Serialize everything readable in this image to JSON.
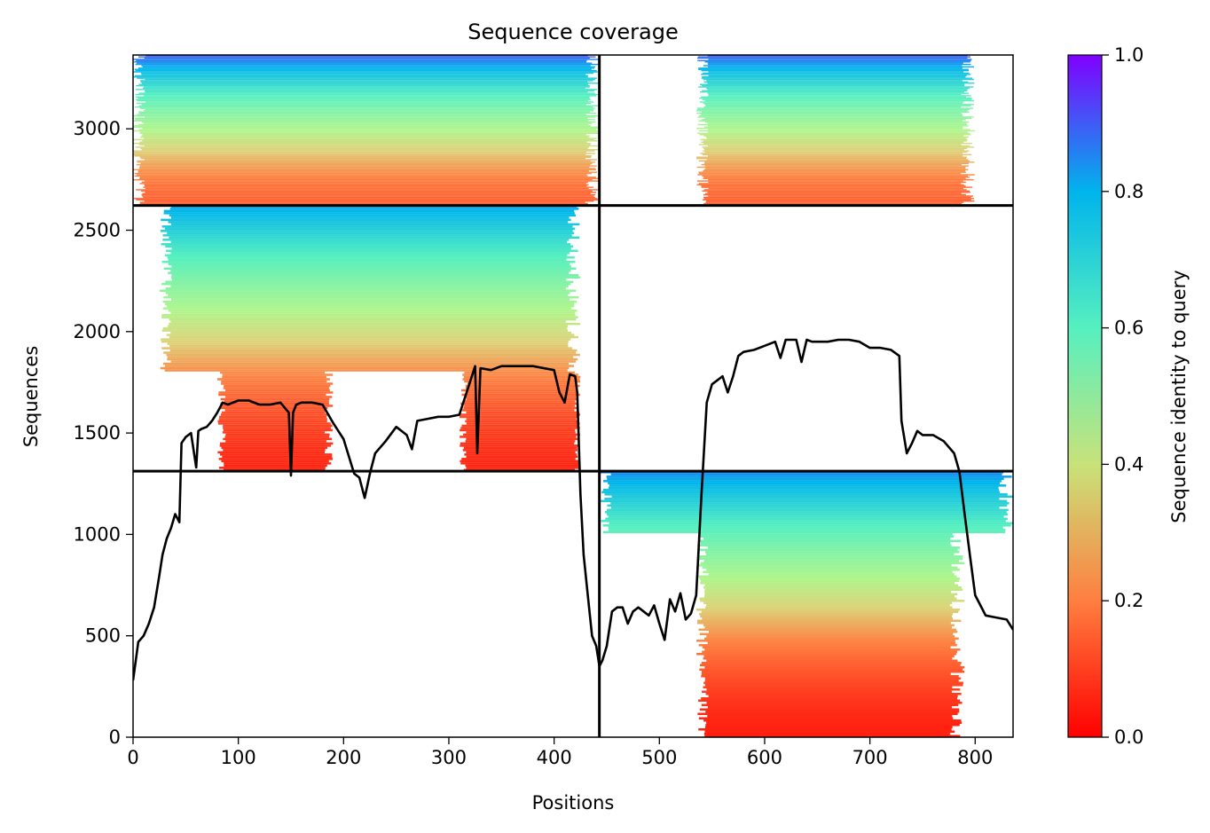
{
  "chart_data": {
    "type": "heatmap",
    "title": "Sequence coverage",
    "xlabel": "Positions",
    "ylabel": "Sequences",
    "xlim": [
      0,
      836
    ],
    "ylim": [
      0,
      3364
    ],
    "xticks": [
      0,
      100,
      200,
      300,
      400,
      500,
      600,
      700,
      800
    ],
    "yticks": [
      0,
      500,
      1000,
      1500,
      2000,
      2500,
      3000
    ],
    "grid": false,
    "legend": "none",
    "colorbar": {
      "label": "Sequence identity to query",
      "range": [
        0.0,
        1.0
      ],
      "ticks": [
        0.0,
        0.2,
        0.4,
        0.6,
        0.8,
        1.0
      ],
      "colormap": "rainbow_r",
      "stops": [
        "#ff0000",
        "#ff7f40",
        "#fff17a",
        "#80ffb4",
        "#00b4ec",
        "#8000ff"
      ]
    },
    "divider_lines": {
      "x": [
        443
      ],
      "y": [
        1312,
        2622
      ],
      "color": "#000000"
    },
    "blocks": [
      {
        "name": "lower-left",
        "x": [
          0,
          443
        ],
        "y": [
          0,
          1312
        ],
        "coverage": "empty"
      },
      {
        "name": "lower-right",
        "x": [
          443,
          836
        ],
        "y": [
          0,
          1312
        ],
        "core_x": [
          535,
          790
        ],
        "wide_x": [
          443,
          836
        ],
        "wide_min_seq": 1000,
        "identity_top": 0.85,
        "identity_bottom": 0.05
      },
      {
        "name": "middle-left",
        "x": [
          0,
          443
        ],
        "y": [
          1312,
          2622
        ],
        "core_x": [
          25,
          425
        ],
        "low_x": [
          80,
          430
        ],
        "low_max_seq": 1800,
        "identity_top": 0.82,
        "identity_bottom": 0.06
      },
      {
        "name": "middle-right",
        "x": [
          443,
          836
        ],
        "y": [
          1312,
          2622
        ],
        "coverage": "empty"
      },
      {
        "name": "upper-left",
        "x": [
          0,
          443
        ],
        "y": [
          2622,
          3364
        ],
        "core_x": [
          0,
          443
        ],
        "identity_top": 0.9,
        "identity_bottom": 0.15
      },
      {
        "name": "upper-right",
        "x": [
          443,
          836
        ],
        "y": [
          2622,
          3364
        ],
        "core_x": [
          535,
          800
        ],
        "identity_top": 0.9,
        "identity_bottom": 0.15
      }
    ],
    "series": [
      {
        "type": "line",
        "color": "#000000",
        "x": [
          0,
          5,
          10,
          15,
          20,
          25,
          28,
          32,
          36,
          40,
          44,
          46,
          50,
          55,
          60,
          62,
          65,
          70,
          75,
          80,
          85,
          90,
          100,
          110,
          120,
          130,
          140,
          148,
          150,
          152,
          155,
          160,
          170,
          180,
          190,
          200,
          210,
          215,
          220,
          225,
          230,
          240,
          250,
          260,
          265,
          270,
          280,
          290,
          300,
          310,
          320,
          325,
          327,
          330,
          340,
          350,
          360,
          370,
          380,
          390,
          400,
          405,
          410,
          415,
          420,
          422,
          425,
          428,
          432,
          436,
          440,
          443,
          446,
          450,
          455,
          460,
          465,
          470,
          475,
          480,
          490,
          495,
          500,
          505,
          510,
          515,
          520,
          525,
          530,
          535,
          540,
          545,
          550,
          555,
          560,
          565,
          570,
          575,
          580,
          590,
          600,
          610,
          615,
          620,
          630,
          635,
          640,
          645,
          650,
          660,
          670,
          680,
          690,
          700,
          705,
          710,
          720,
          728,
          730,
          735,
          740,
          745,
          750,
          760,
          770,
          780,
          785,
          790,
          795,
          800,
          805,
          810,
          820,
          830,
          836
        ],
        "y": [
          280,
          470,
          500,
          560,
          640,
          800,
          900,
          980,
          1030,
          1100,
          1060,
          1450,
          1480,
          1500,
          1330,
          1510,
          1520,
          1530,
          1560,
          1600,
          1650,
          1640,
          1660,
          1660,
          1640,
          1640,
          1650,
          1600,
          1290,
          1600,
          1640,
          1650,
          1650,
          1640,
          1550,
          1470,
          1300,
          1280,
          1180,
          1300,
          1400,
          1460,
          1530,
          1490,
          1420,
          1560,
          1570,
          1580,
          1580,
          1590,
          1750,
          1830,
          1400,
          1820,
          1810,
          1830,
          1830,
          1830,
          1830,
          1820,
          1810,
          1700,
          1650,
          1790,
          1780,
          1700,
          1200,
          900,
          700,
          500,
          450,
          350,
          380,
          450,
          620,
          640,
          640,
          560,
          620,
          640,
          600,
          650,
          560,
          480,
          680,
          620,
          710,
          580,
          610,
          700,
          1200,
          1650,
          1740,
          1760,
          1780,
          1700,
          1780,
          1880,
          1900,
          1910,
          1930,
          1950,
          1870,
          1960,
          1960,
          1850,
          1960,
          1950,
          1950,
          1950,
          1960,
          1960,
          1950,
          1920,
          1920,
          1920,
          1910,
          1880,
          1560,
          1400,
          1450,
          1510,
          1490,
          1490,
          1460,
          1400,
          1310,
          1100,
          900,
          700,
          650,
          600,
          590,
          580,
          530
        ]
      }
    ]
  }
}
